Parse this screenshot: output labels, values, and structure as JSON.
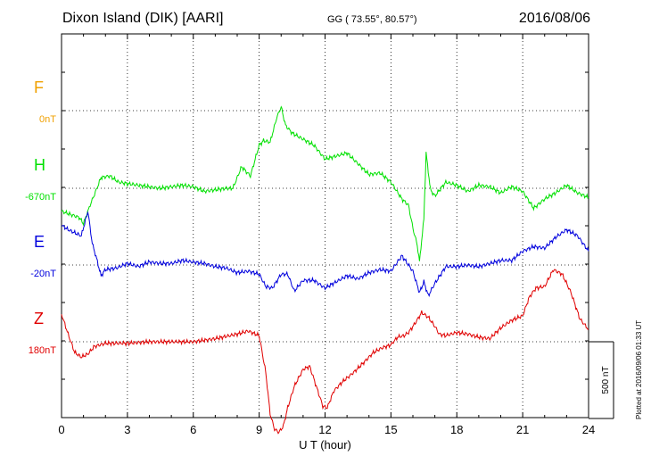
{
  "header": {
    "title": "Dixon Island (DIK)  [AARI]",
    "coords": "GG ( 73.55°,  80.57°)",
    "date": "2016/08/06"
  },
  "plotted_note": "Plotted at 2016/09/06 01:33 UT",
  "colors": {
    "F": "#f0a000",
    "H": "#00e000",
    "E": "#0000dd",
    "Z": "#e00000",
    "grid": "#000000"
  },
  "chart_data": {
    "type": "line",
    "title": "Dixon Island (DIK)  [AARI]",
    "xlabel": "U T (hour)",
    "ylabel": "",
    "xlim": [
      0,
      24
    ],
    "xticks": [
      0,
      3,
      6,
      9,
      12,
      15,
      18,
      21,
      24
    ],
    "scale_bar": {
      "label": "500 nT",
      "value_nT": 500
    },
    "grid": true,
    "panels": [
      {
        "name": "F",
        "baseline_label": "0nT",
        "baseline_nT": 0,
        "has_data": false
      },
      {
        "name": "H",
        "baseline_label": "-670nT",
        "baseline_nT": -670,
        "has_data": true
      },
      {
        "name": "E",
        "baseline_label": "-20nT",
        "baseline_nT": -20,
        "has_data": true
      },
      {
        "name": "Z",
        "baseline_label": "180nT",
        "baseline_nT": 180,
        "has_data": true
      }
    ],
    "series": [
      {
        "name": "H",
        "x": [
          0,
          0.4,
          0.8,
          1.0,
          1.3,
          1.5,
          1.8,
          2.2,
          2.6,
          3.0,
          3.5,
          4.0,
          4.5,
          5.0,
          5.5,
          6.0,
          6.5,
          7.0,
          7.5,
          7.8,
          8.2,
          8.6,
          9.0,
          9.2,
          9.5,
          9.8,
          10.0,
          10.2,
          10.5,
          11.0,
          11.5,
          12.0,
          12.5,
          13.0,
          13.5,
          14.0,
          14.5,
          15.0,
          15.5,
          15.8,
          16.0,
          16.2,
          16.3,
          16.5,
          16.6,
          16.8,
          17.0,
          17.5,
          18.0,
          18.5,
          19.0,
          19.5,
          20.0,
          20.5,
          21.0,
          21.5,
          22.0,
          22.5,
          23.0,
          23.5,
          24.0
        ],
        "values": [
          -150,
          -170,
          -190,
          -230,
          -110,
          -40,
          70,
          80,
          40,
          30,
          20,
          10,
          0,
          10,
          20,
          10,
          -20,
          -10,
          0,
          0,
          140,
          80,
          280,
          310,
          300,
          460,
          530,
          410,
          360,
          320,
          280,
          190,
          210,
          230,
          160,
          90,
          100,
          40,
          -70,
          -110,
          -260,
          -370,
          -480,
          -200,
          230,
          -10,
          -50,
          40,
          20,
          -20,
          20,
          10,
          -30,
          10,
          -20,
          -130,
          -70,
          -30,
          20,
          -30,
          -60
        ]
      },
      {
        "name": "E",
        "x": [
          0,
          0.3,
          0.6,
          0.9,
          1.2,
          1.4,
          1.6,
          1.8,
          2.0,
          2.5,
          3.0,
          3.5,
          4.0,
          4.5,
          5.0,
          5.5,
          6.0,
          6.5,
          7.0,
          7.5,
          8.0,
          8.5,
          9.0,
          9.3,
          9.6,
          10.0,
          10.3,
          10.6,
          11.0,
          11.5,
          12.0,
          12.5,
          13.0,
          13.5,
          14.0,
          14.5,
          15.0,
          15.5,
          16.0,
          16.3,
          16.5,
          16.7,
          17.0,
          17.5,
          18.0,
          18.5,
          19.0,
          19.5,
          20.0,
          20.5,
          21.0,
          21.5,
          22.0,
          22.5,
          23.0,
          23.5,
          24.0
        ],
        "values": [
          260,
          230,
          210,
          190,
          350,
          140,
          40,
          -70,
          -30,
          -20,
          10,
          -10,
          20,
          10,
          10,
          30,
          20,
          10,
          -10,
          -20,
          -50,
          -40,
          -60,
          -140,
          -150,
          -60,
          -60,
          -170,
          -100,
          -100,
          -150,
          -110,
          -70,
          -90,
          -50,
          -30,
          -40,
          60,
          -40,
          -180,
          -110,
          -200,
          -120,
          -10,
          -10,
          0,
          -10,
          10,
          30,
          30,
          90,
          120,
          110,
          180,
          230,
          190,
          90
        ]
      },
      {
        "name": "Z",
        "x": [
          0,
          0.3,
          0.6,
          0.9,
          1.2,
          1.5,
          2.0,
          3.0,
          4.0,
          5.0,
          6.0,
          7.0,
          8.0,
          8.5,
          9.0,
          9.3,
          9.5,
          9.7,
          9.9,
          10.1,
          10.3,
          10.6,
          11.0,
          11.3,
          11.6,
          11.9,
          12.1,
          12.4,
          12.8,
          13.3,
          13.8,
          14.2,
          14.6,
          15.0,
          15.3,
          15.6,
          15.8,
          16.1,
          16.4,
          16.7,
          17.0,
          17.2,
          17.5,
          18.0,
          18.5,
          19.0,
          19.5,
          20.0,
          20.5,
          21.0,
          21.3,
          21.6,
          22.0,
          22.4,
          22.8,
          23.2,
          23.6,
          24.0
        ],
        "values": [
          180,
          50,
          -70,
          -100,
          -80,
          -30,
          -10,
          -10,
          0,
          0,
          0,
          20,
          50,
          70,
          40,
          -200,
          -470,
          -570,
          -590,
          -550,
          -430,
          -290,
          -180,
          -160,
          -290,
          -420,
          -430,
          -320,
          -260,
          -200,
          -130,
          -70,
          -40,
          -20,
          30,
          40,
          60,
          120,
          190,
          160,
          100,
          50,
          40,
          60,
          50,
          30,
          20,
          90,
          140,
          170,
          290,
          350,
          360,
          470,
          440,
          320,
          150,
          80
        ]
      }
    ]
  }
}
